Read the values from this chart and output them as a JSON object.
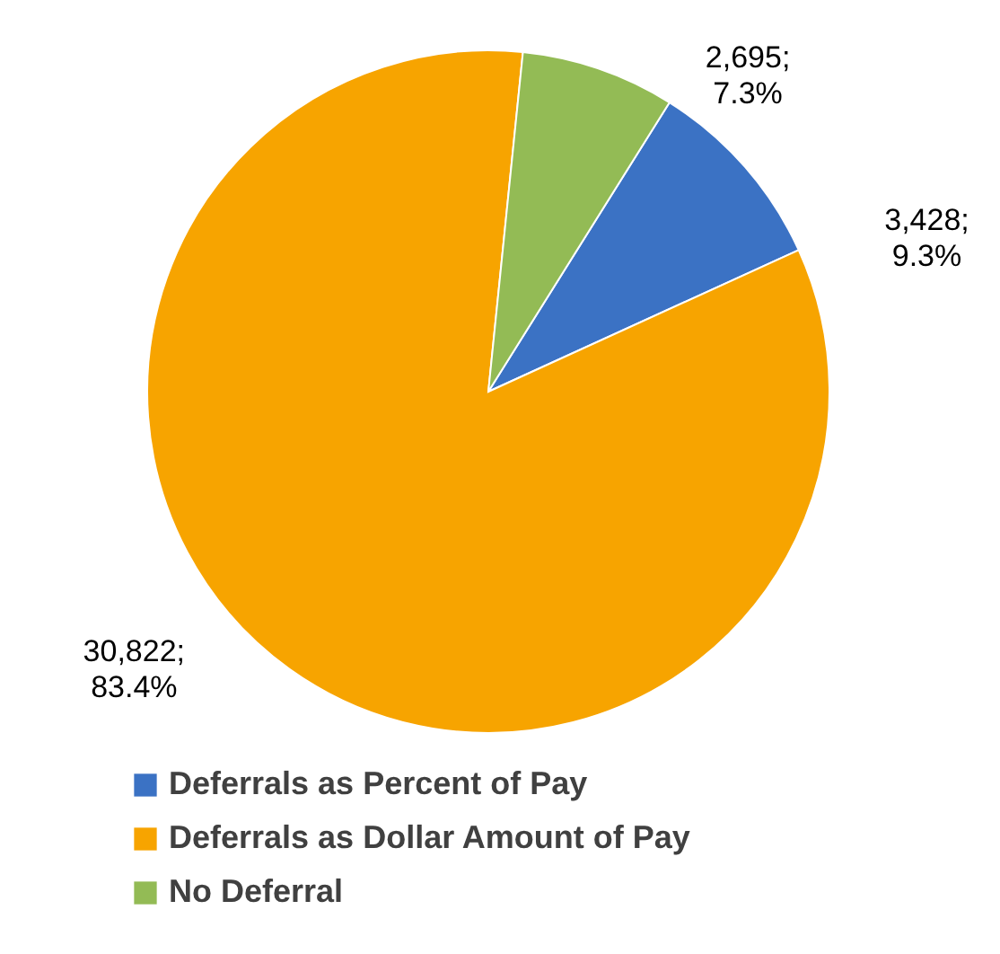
{
  "chart_data": {
    "type": "pie",
    "categories": [
      "Deferrals as Percent of Pay",
      "Deferrals as Dollar Amount of Pay",
      "No Deferral"
    ],
    "values": [
      3428,
      30822,
      2695
    ],
    "colors": [
      "#3b72c4",
      "#f7a400",
      "#93bb55"
    ],
    "value_labels": [
      "3,428; 9.3%",
      "30,822; 83.4%",
      "2,695; 7.3%"
    ],
    "legend": "bottom"
  }
}
